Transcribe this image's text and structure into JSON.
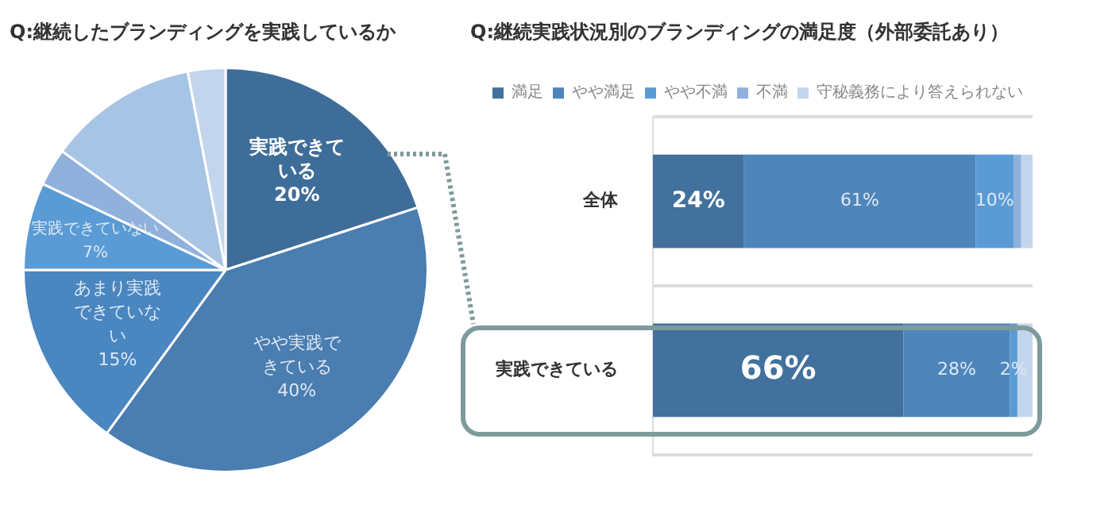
{
  "chart_data": [
    {
      "type": "pie",
      "title": "Q:継続したブランディングを実践しているか",
      "categories": [
        "実践できている",
        "やや実践できている",
        "あまり実践できていない",
        "実践できていない",
        null,
        null,
        null
      ],
      "values": [
        20,
        40,
        15,
        7,
        3,
        12,
        3
      ],
      "colors": [
        "#3f6d99",
        "#4a7db0",
        "#4a86c0",
        "#5a9bd5",
        "#8fb1dc",
        "#a8c4e5",
        "#c3d5ec"
      ],
      "value_labels": [
        "20%",
        "40%",
        "15%",
        "7%",
        null,
        null,
        null
      ],
      "legend": false
    },
    {
      "type": "bar",
      "title": "Q:継続実践状況別のブランディングの満足度（外部委託あり）",
      "orientation": "horizontal",
      "stacked": true,
      "categories": [
        "全体",
        "実践できている"
      ],
      "series": [
        {
          "name": "満足",
          "color": "#41719c",
          "values": [
            24,
            66
          ],
          "value_labels": [
            "24%",
            "66%"
          ]
        },
        {
          "name": "やや満足",
          "color": "#4e86bb",
          "values": [
            61,
            28
          ],
          "value_labels": [
            "61%",
            "28%"
          ]
        },
        {
          "name": "やや不満",
          "color": "#5b9bd5",
          "values": [
            10,
            2
          ],
          "value_labels": [
            "10%",
            "2%"
          ]
        },
        {
          "name": "不満",
          "color": "#8fb1dc",
          "values": [
            2,
            0
          ],
          "value_labels": [
            null,
            null
          ]
        },
        {
          "name": "守秘義務により答えられない",
          "color": "#c3d5ec",
          "values": [
            3,
            4
          ],
          "value_labels": [
            null,
            null
          ]
        }
      ],
      "xlim": [
        0,
        100
      ],
      "tick_labels": "y",
      "grid": "y",
      "legend": "top"
    }
  ]
}
